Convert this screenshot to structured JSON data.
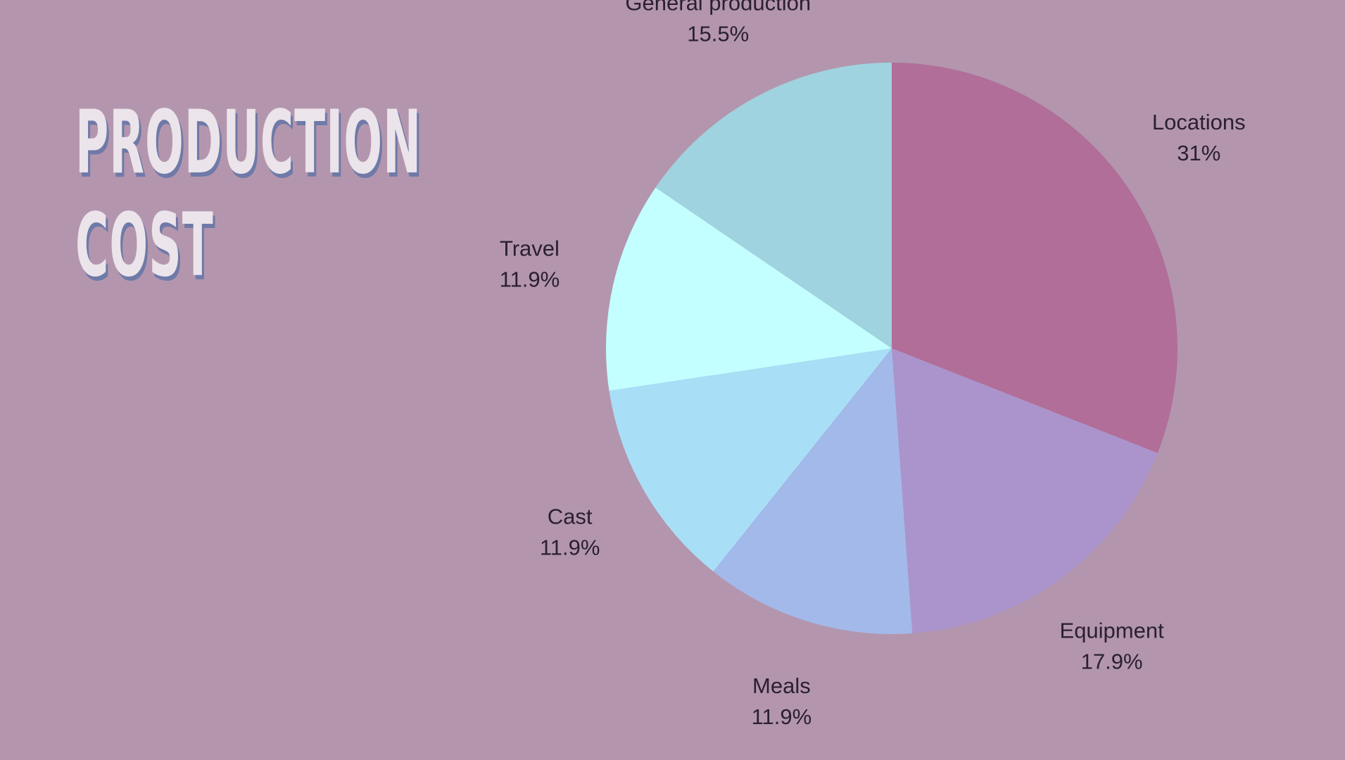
{
  "chart_data": {
    "type": "pie",
    "title": "PRODUCTION COST",
    "categories": [
      "Locations",
      "Equipment",
      "Meals",
      "Cast",
      "Travel",
      "General production"
    ],
    "values": [
      31,
      17.9,
      11.9,
      11.9,
      11.9,
      15.5
    ],
    "value_labels": [
      "31%",
      "17.9%",
      "11.9%",
      "11.9%",
      "11.9%",
      "15.5%"
    ],
    "colors": [
      "#b06e98",
      "#ab94cb",
      "#a3b9ea",
      "#a8dff7",
      "#c4ffff",
      "#9fd3e0"
    ]
  }
}
